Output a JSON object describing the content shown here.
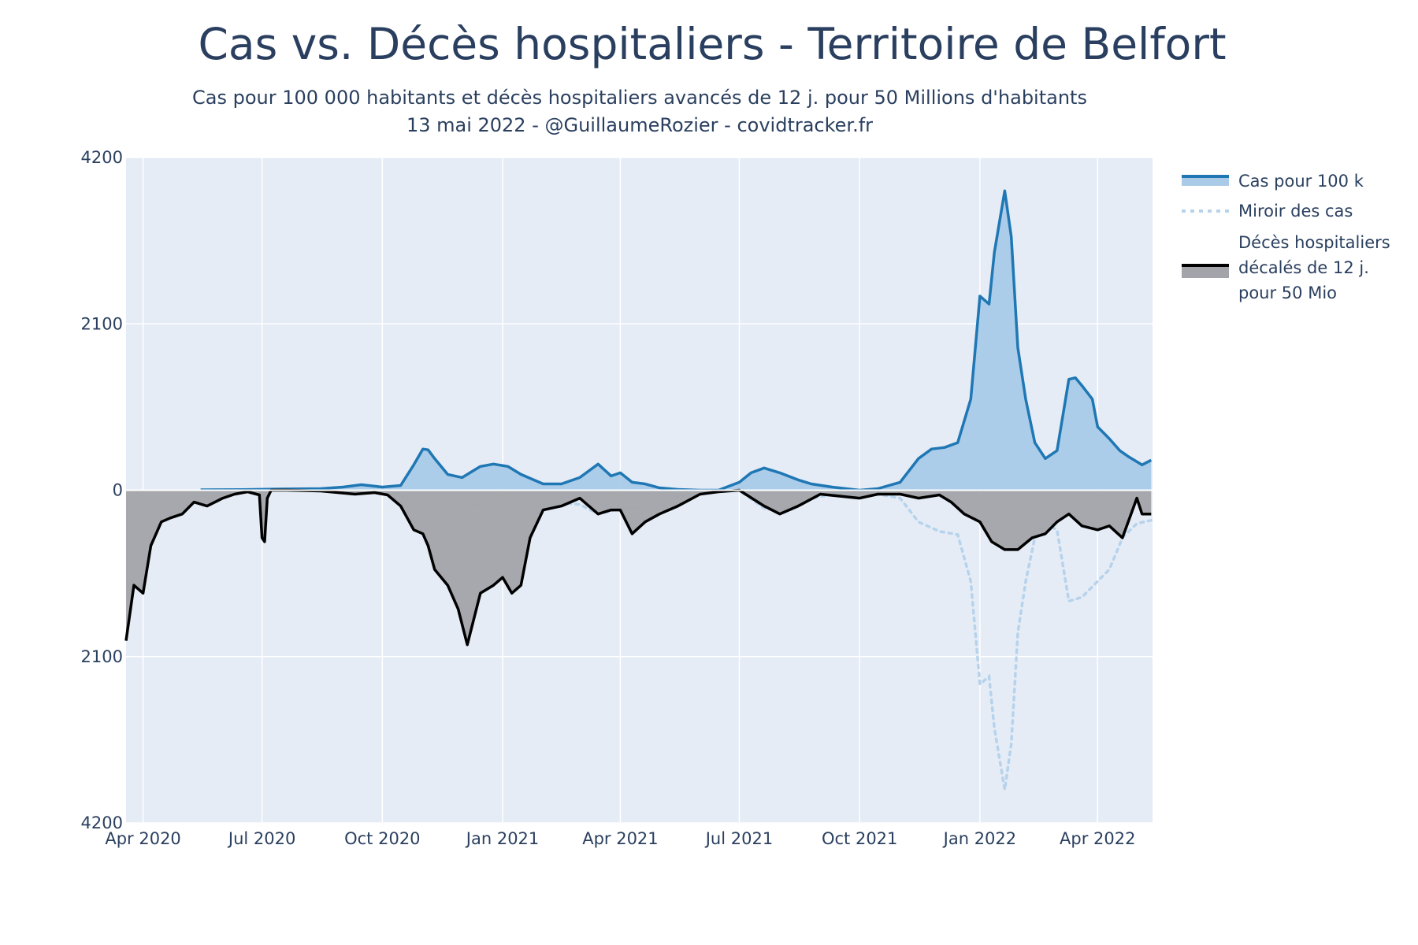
{
  "chart_data": {
    "type": "area",
    "title": "Cas vs. Décès hospitaliers - Territoire de Belfort",
    "subtitle_lines": [
      "Cas pour 100 000 habitants et décès hospitaliers avancés de 12 j. pour 50 Millions d'habitants",
      "13 mai 2022 - @GuillaumeRozier - covidtracker.fr"
    ],
    "x_ticks": [
      "Apr 2020",
      "Jul 2020",
      "Oct 2020",
      "Jan 2021",
      "Apr 2021",
      "Jul 2021",
      "Oct 2021",
      "Jan 2022",
      "Apr 2022"
    ],
    "x_tick_dates": [
      "2020-04-01",
      "2020-07-01",
      "2020-10-01",
      "2021-01-01",
      "2021-04-01",
      "2021-07-01",
      "2021-10-01",
      "2022-01-01",
      "2022-04-01"
    ],
    "xlim": [
      "2020-03-19",
      "2022-05-13"
    ],
    "y_ticks": [
      {
        "value": 4200,
        "label": "4200"
      },
      {
        "value": 2100,
        "label": "2100"
      },
      {
        "value": 0,
        "label": "0"
      },
      {
        "value": -2100,
        "label": "2100"
      },
      {
        "value": -4200,
        "label": "4200"
      }
    ],
    "ylim": [
      -4200,
      4200
    ],
    "grid": true,
    "legend_position": "right",
    "colors": {
      "plot_bg": "#e5ecf6",
      "grid": "#ffffff",
      "cases_line": "#1f77b4",
      "cases_fill": "#a9cbe8",
      "mirror_line": "#b7d3ec",
      "deaths_line": "#000000",
      "deaths_fill": "#a2a4a9"
    },
    "series": [
      {
        "name": "Cas pour 100 k",
        "style": "line-fill-up",
        "x": [
          "2020-05-15",
          "2020-06-15",
          "2020-07-15",
          "2020-08-15",
          "2020-09-01",
          "2020-09-15",
          "2020-10-01",
          "2020-10-15",
          "2020-10-25",
          "2020-11-01",
          "2020-11-05",
          "2020-11-10",
          "2020-11-20",
          "2020-12-01",
          "2020-12-15",
          "2020-12-25",
          "2021-01-05",
          "2021-01-15",
          "2021-02-01",
          "2021-02-15",
          "2021-03-01",
          "2021-03-15",
          "2021-03-25",
          "2021-04-01",
          "2021-04-10",
          "2021-04-20",
          "2021-05-01",
          "2021-05-15",
          "2021-06-01",
          "2021-06-15",
          "2021-07-01",
          "2021-07-10",
          "2021-07-20",
          "2021-08-01",
          "2021-08-15",
          "2021-08-25",
          "2021-09-10",
          "2021-10-01",
          "2021-10-15",
          "2021-11-01",
          "2021-11-15",
          "2021-11-25",
          "2021-12-05",
          "2021-12-15",
          "2021-12-25",
          "2022-01-01",
          "2022-01-08",
          "2022-01-12",
          "2022-01-20",
          "2022-01-25",
          "2022-01-30",
          "2022-02-05",
          "2022-02-12",
          "2022-02-20",
          "2022-03-01",
          "2022-03-10",
          "2022-03-15",
          "2022-03-20",
          "2022-03-28",
          "2022-04-01",
          "2022-04-10",
          "2022-04-18",
          "2022-04-25",
          "2022-05-05",
          "2022-05-12"
        ],
        "y": [
          5,
          8,
          15,
          20,
          40,
          70,
          40,
          60,
          320,
          520,
          510,
          400,
          200,
          160,
          300,
          330,
          300,
          200,
          80,
          80,
          160,
          330,
          180,
          220,
          100,
          80,
          30,
          10,
          0,
          0,
          100,
          220,
          280,
          220,
          130,
          80,
          40,
          0,
          20,
          100,
          400,
          520,
          540,
          600,
          1150,
          2450,
          2350,
          3000,
          3780,
          3200,
          1800,
          1150,
          600,
          400,
          500,
          1400,
          1420,
          1320,
          1150,
          800,
          650,
          500,
          420,
          320,
          380
        ]
      },
      {
        "name": "Miroir des cas",
        "style": "dotted",
        "x": [
          "2020-10-15",
          "2020-11-01",
          "2020-11-10",
          "2020-11-20",
          "2020-12-01",
          "2020-12-15",
          "2021-01-01",
          "2021-01-15",
          "2021-02-01",
          "2021-02-15",
          "2021-03-01",
          "2021-03-15",
          "2021-04-01",
          "2021-04-15",
          "2021-05-01",
          "2021-05-15",
          "2021-06-01",
          "2021-06-15",
          "2021-07-01",
          "2021-07-20",
          "2021-08-01",
          "2021-08-15",
          "2021-09-01",
          "2021-10-01",
          "2021-11-01",
          "2021-11-15",
          "2021-12-01",
          "2021-12-15",
          "2021-12-25",
          "2022-01-01",
          "2022-01-08",
          "2022-01-12",
          "2022-01-20",
          "2022-01-25",
          "2022-01-30",
          "2022-02-05",
          "2022-02-12",
          "2022-02-20",
          "2022-03-01",
          "2022-03-10",
          "2022-03-20",
          "2022-04-01",
          "2022-04-10",
          "2022-04-20",
          "2022-05-01",
          "2022-05-12"
        ],
        "y": [
          -60,
          -300,
          -420,
          -350,
          -150,
          -200,
          -260,
          -300,
          -180,
          -160,
          -180,
          -300,
          -230,
          -220,
          -150,
          -80,
          -30,
          -10,
          0,
          -230,
          -260,
          -140,
          -80,
          -10,
          -100,
          -400,
          -520,
          -560,
          -1150,
          -2450,
          -2350,
          -3000,
          -3780,
          -3200,
          -1800,
          -1150,
          -600,
          -420,
          -500,
          -1400,
          -1350,
          -1150,
          -1000,
          -600,
          -420,
          -380
        ]
      },
      {
        "name": "Décès hospitaliers décalés de 12 j. pour 50 Mio",
        "style": "line-fill-down",
        "x": [
          "2020-03-19",
          "2020-03-25",
          "2020-04-01",
          "2020-04-07",
          "2020-04-15",
          "2020-04-22",
          "2020-05-01",
          "2020-05-10",
          "2020-05-20",
          "2020-06-01",
          "2020-06-10",
          "2020-06-20",
          "2020-06-29",
          "2020-07-01",
          "2020-07-03",
          "2020-07-05",
          "2020-07-08",
          "2020-07-20",
          "2020-08-15",
          "2020-09-10",
          "2020-09-25",
          "2020-10-05",
          "2020-10-15",
          "2020-10-25",
          "2020-11-01",
          "2020-11-05",
          "2020-11-10",
          "2020-11-20",
          "2020-11-28",
          "2020-12-05",
          "2020-12-15",
          "2020-12-25",
          "2021-01-01",
          "2021-01-08",
          "2021-01-15",
          "2021-01-22",
          "2021-02-01",
          "2021-02-15",
          "2021-03-01",
          "2021-03-15",
          "2021-03-25",
          "2021-04-01",
          "2021-04-10",
          "2021-04-20",
          "2021-05-01",
          "2021-05-15",
          "2021-06-01",
          "2021-06-15",
          "2021-07-01",
          "2021-07-20",
          "2021-08-01",
          "2021-08-15",
          "2021-09-01",
          "2021-10-01",
          "2021-10-15",
          "2021-11-01",
          "2021-11-15",
          "2021-12-01",
          "2021-12-10",
          "2021-12-20",
          "2022-01-01",
          "2022-01-10",
          "2022-01-20",
          "2022-01-30",
          "2022-02-10",
          "2022-02-20",
          "2022-03-01",
          "2022-03-10",
          "2022-03-20",
          "2022-04-01",
          "2022-04-10",
          "2022-04-20",
          "2022-05-01",
          "2022-05-05",
          "2022-05-12"
        ],
        "y": [
          -1900,
          -1200,
          -1300,
          -700,
          -400,
          -350,
          -300,
          -150,
          -200,
          -100,
          -50,
          -20,
          -60,
          -600,
          -650,
          -100,
          0,
          0,
          -10,
          -50,
          -30,
          -60,
          -200,
          -500,
          -550,
          -700,
          -1000,
          -1200,
          -1500,
          -1950,
          -1300,
          -1200,
          -1100,
          -1300,
          -1200,
          -600,
          -250,
          -200,
          -100,
          -300,
          -250,
          -250,
          -550,
          -400,
          -300,
          -200,
          -50,
          -20,
          0,
          -200,
          -300,
          -200,
          -50,
          -100,
          -50,
          -50,
          -100,
          -60,
          -150,
          -300,
          -400,
          -650,
          -750,
          -750,
          -600,
          -550,
          -400,
          -300,
          -450,
          -500,
          -450,
          -600,
          -100,
          -300,
          -300
        ]
      }
    ],
    "legend": [
      {
        "lines": [
          "Cas pour 100 k"
        ]
      },
      {
        "lines": [
          "Miroir des cas"
        ]
      },
      {
        "lines": [
          "Décès hospitaliers",
          "décalés de 12 j.",
          "pour 50 Mio"
        ]
      }
    ]
  }
}
